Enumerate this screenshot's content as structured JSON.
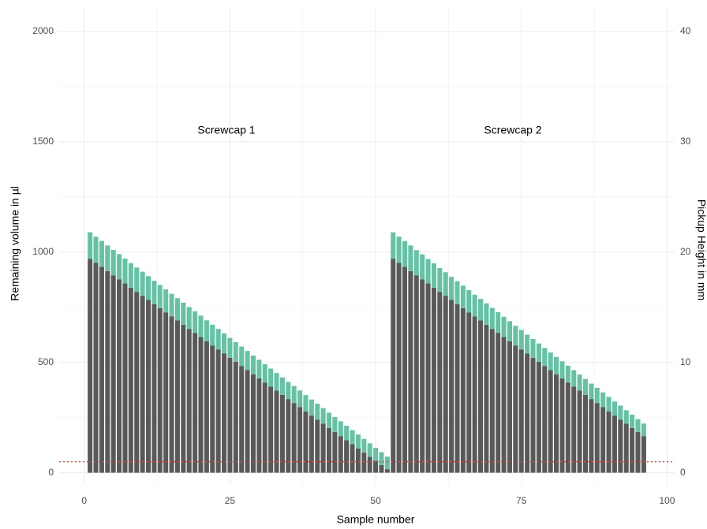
{
  "chart_data": {
    "type": "stacked_bar",
    "x": [
      1,
      2,
      3,
      4,
      5,
      6,
      7,
      8,
      9,
      10,
      11,
      12,
      13,
      14,
      15,
      16,
      17,
      18,
      19,
      20,
      21,
      22,
      23,
      24,
      25,
      26,
      27,
      28,
      29,
      30,
      31,
      32,
      33,
      34,
      35,
      36,
      37,
      38,
      39,
      40,
      41,
      42,
      43,
      44,
      45,
      46,
      47,
      48,
      49,
      50,
      51,
      52,
      53,
      54,
      55,
      56,
      57,
      58,
      59,
      60,
      61,
      62,
      63,
      64,
      65,
      66,
      67,
      68,
      69,
      70,
      71,
      72,
      73,
      74,
      75,
      76,
      77,
      78,
      79,
      80,
      81,
      82,
      83,
      84,
      85,
      86,
      87,
      88,
      89,
      90,
      91,
      92,
      93,
      94,
      95,
      96
    ],
    "series": [
      {
        "color": "#595959",
        "values": [
          970,
          951,
          933,
          914,
          895,
          877,
          858,
          839,
          820,
          802,
          783,
          764,
          746,
          727,
          708,
          690,
          671,
          652,
          634,
          615,
          596,
          577,
          559,
          540,
          521,
          503,
          484,
          465,
          446,
          428,
          409,
          390,
          372,
          353,
          334,
          316,
          297,
          278,
          259,
          241,
          222,
          203,
          185,
          166,
          147,
          129,
          110,
          91,
          72,
          54,
          35,
          16,
          970,
          951,
          933,
          914,
          895,
          877,
          858,
          839,
          820,
          802,
          783,
          764,
          746,
          727,
          708,
          690,
          671,
          652,
          634,
          615,
          596,
          577,
          559,
          540,
          521,
          503,
          484,
          465,
          446,
          428,
          409,
          390,
          372,
          353,
          334,
          316,
          297,
          278,
          259,
          241,
          222,
          203,
          185,
          166
        ]
      },
      {
        "color": "#66c2a5",
        "values": [
          120,
          119,
          118,
          116,
          115,
          114,
          113,
          111,
          110,
          109,
          108,
          106,
          105,
          104,
          103,
          101,
          100,
          99,
          98,
          97,
          95,
          94,
          93,
          92,
          90,
          89,
          88,
          87,
          85,
          84,
          83,
          82,
          80,
          79,
          78,
          77,
          76,
          74,
          73,
          72,
          71,
          69,
          68,
          67,
          66,
          64,
          63,
          62,
          61,
          59,
          58,
          57,
          120,
          119,
          117,
          116,
          114,
          113,
          111,
          110,
          108,
          107,
          105,
          104,
          102,
          101,
          99,
          98,
          97,
          95,
          94,
          92,
          91,
          89,
          88,
          86,
          85,
          83,
          82,
          80,
          79,
          77,
          76,
          75,
          73,
          72,
          70,
          69,
          67,
          66,
          64,
          63,
          61,
          60,
          58,
          57
        ]
      }
    ],
    "xlabel": "Sample number",
    "ylabel": "Remaining volume in µl",
    "y2label": "Pickup Height in mm",
    "annotations": [
      "Screwcap 1",
      "Screwcap 2"
    ],
    "reference_line": {
      "value": 50,
      "color": "#e8473a"
    },
    "xlim": [
      -4.3,
      101.3
    ],
    "xticks": [
      0,
      25,
      50,
      75,
      100
    ],
    "ylim": [
      -55,
      2107
    ],
    "yticks": [
      0,
      500,
      1000,
      1500,
      2000
    ],
    "y2lim": [
      -1.1,
      42.14
    ],
    "y2ticks": [
      0,
      10,
      20,
      30,
      40
    ],
    "grid": true
  }
}
